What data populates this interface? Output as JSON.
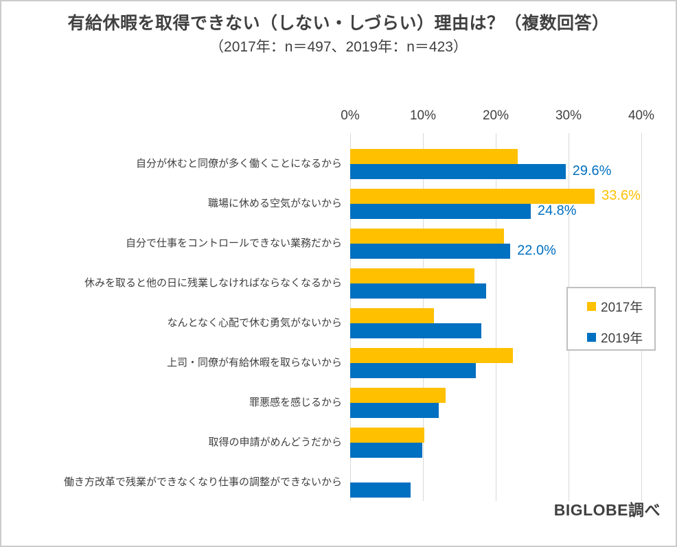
{
  "title": "有給休暇を取得できない（しない・しづらい）理由は？（複数回答）",
  "subtitle": "（2017年：n＝497、2019年：n＝423）",
  "source": "BIGLOBE調べ",
  "colors": {
    "series_2017": "#FFC000",
    "series_2019": "#0070C0",
    "gridline": "#D9D9D9",
    "text": "#404040",
    "legend_border": "#BFBFBF"
  },
  "legend": {
    "items": [
      {
        "label": "2017年",
        "color": "#FFC000"
      },
      {
        "label": "2019年",
        "color": "#0070C0"
      }
    ]
  },
  "chart_data": {
    "type": "bar",
    "orientation": "horizontal",
    "title": "有給休暇を取得できない（しない・しづらい）理由は？（複数回答）",
    "subtitle": "（2017年：n＝497、2019年：n＝423）",
    "categories": [
      "自分が休むと同僚が多く働くことになるから",
      "職場に休める空気がないから",
      "自分で仕事をコントロールできない業務だから",
      "休みを取ると他の日に残業しなければならなくなるから",
      "なんとなく心配で休む勇気がないから",
      "上司・同僚が有給休暇を取らないから",
      "罪悪感を感じるから",
      "取得の申請がめんどうだから",
      "働き方改革で残業ができなくなり仕事の調整ができないから"
    ],
    "series": [
      {
        "name": "2017年",
        "color": "#FFC000",
        "values": [
          23.0,
          33.6,
          21.1,
          17.1,
          11.5,
          22.4,
          13.1,
          10.2,
          null
        ]
      },
      {
        "name": "2019年",
        "color": "#0070C0",
        "values": [
          29.6,
          24.8,
          22.0,
          18.7,
          18.0,
          17.3,
          12.2,
          9.9,
          8.3
        ]
      }
    ],
    "data_labels": [
      {
        "series_index": 1,
        "category_index": 0,
        "text": "29.6%",
        "color": "#0070C0"
      },
      {
        "series_index": 0,
        "category_index": 1,
        "text": "33.6%",
        "color": "#FFC000"
      },
      {
        "series_index": 1,
        "category_index": 1,
        "text": "24.8%",
        "color": "#0070C0"
      },
      {
        "series_index": 1,
        "category_index": 2,
        "text": "22.0%",
        "color": "#0070C0"
      }
    ],
    "xlim": [
      0,
      40
    ],
    "x_ticks": [
      {
        "value": 0,
        "label": "0%"
      },
      {
        "value": 10,
        "label": "10%"
      },
      {
        "value": 20,
        "label": "20%"
      },
      {
        "value": 30,
        "label": "30%"
      },
      {
        "value": 40,
        "label": "40%"
      }
    ],
    "grid": true,
    "legend_position": "right-middle",
    "axis_position": "top"
  }
}
